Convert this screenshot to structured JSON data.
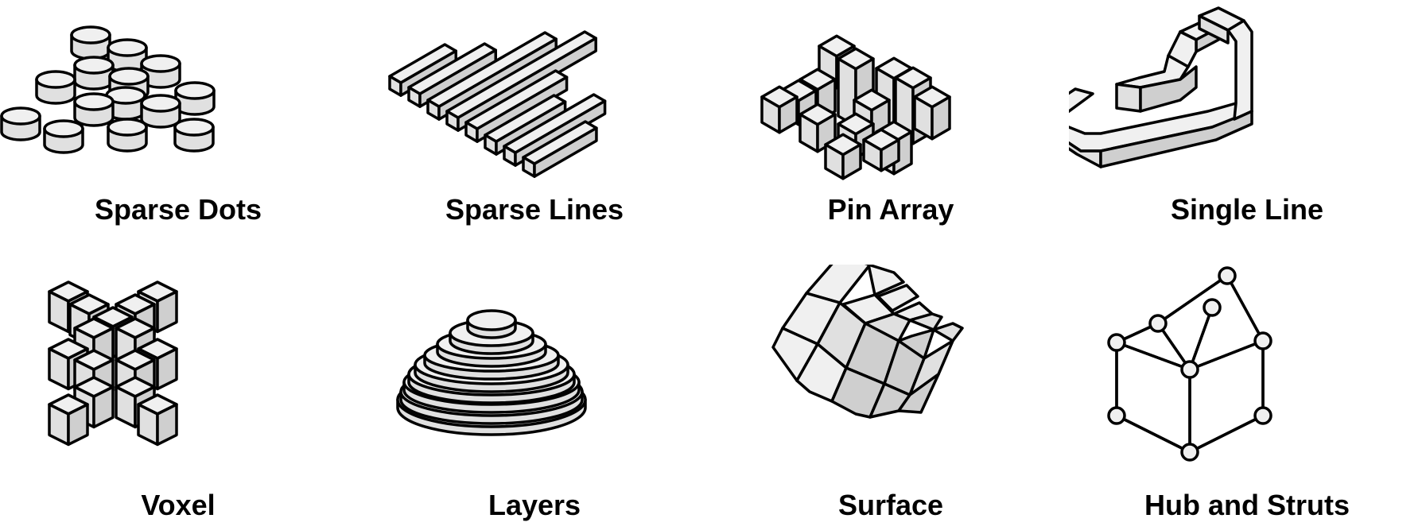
{
  "colors": {
    "background": "#ffffff",
    "outline": "#000000",
    "face_light": "#f0f0f0",
    "face_mid": "#e0e0e0",
    "face_dark": "#cfcfcf"
  },
  "items": [
    {
      "label": "Sparse Dots",
      "icon": "sparse-dots-icon"
    },
    {
      "label": "Sparse Lines",
      "icon": "sparse-lines-icon"
    },
    {
      "label": "Pin Array",
      "icon": "pin-array-icon"
    },
    {
      "label": "Single Line",
      "icon": "single-line-icon"
    },
    {
      "label": "Voxel",
      "icon": "voxel-icon"
    },
    {
      "label": "Layers",
      "icon": "layers-icon"
    },
    {
      "label": "Surface",
      "icon": "surface-icon"
    },
    {
      "label": "Hub and Struts",
      "icon": "hub-and-struts-icon"
    }
  ]
}
